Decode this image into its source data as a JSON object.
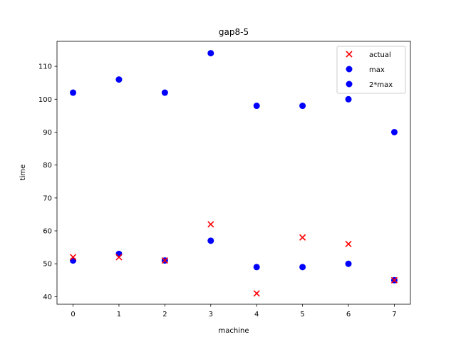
{
  "chart_data": {
    "type": "scatter",
    "title": "gap8-5",
    "xlabel": "machine",
    "ylabel": "time",
    "xlim": [
      -0.35,
      7.35
    ],
    "ylim": [
      37.7,
      117.6
    ],
    "xticks": [
      0,
      1,
      2,
      3,
      4,
      5,
      6,
      7
    ],
    "yticks": [
      40,
      50,
      60,
      70,
      80,
      90,
      100,
      110
    ],
    "grid": false,
    "legend_position": "top-right",
    "series": [
      {
        "name": "actual",
        "marker": "x",
        "color": "#ff0000",
        "x": [
          0,
          1,
          2,
          3,
          4,
          5,
          6,
          7
        ],
        "y": [
          52,
          52,
          51,
          62,
          41,
          58,
          56,
          45
        ]
      },
      {
        "name": "max",
        "marker": "circle",
        "color": "#0000ff",
        "x": [
          0,
          1,
          2,
          3,
          4,
          5,
          6,
          7
        ],
        "y": [
          51,
          53,
          51,
          57,
          49,
          49,
          50,
          45
        ]
      },
      {
        "name": "2*max",
        "marker": "circle",
        "color": "#0000ff",
        "x": [
          0,
          1,
          2,
          3,
          4,
          5,
          6,
          7
        ],
        "y": [
          102,
          106,
          102,
          114,
          98,
          98,
          100,
          90
        ]
      }
    ]
  }
}
